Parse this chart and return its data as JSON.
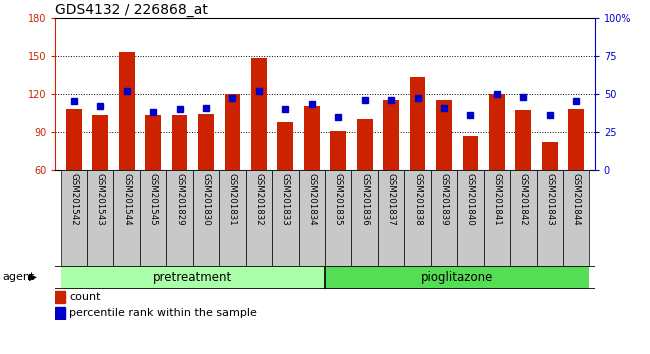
{
  "title": "GDS4132 / 226868_at",
  "categories": [
    "GSM201542",
    "GSM201543",
    "GSM201544",
    "GSM201545",
    "GSM201829",
    "GSM201830",
    "GSM201831",
    "GSM201832",
    "GSM201833",
    "GSM201834",
    "GSM201835",
    "GSM201836",
    "GSM201837",
    "GSM201838",
    "GSM201839",
    "GSM201840",
    "GSM201841",
    "GSM201842",
    "GSM201843",
    "GSM201844"
  ],
  "counts": [
    108,
    103,
    153,
    103,
    103,
    104,
    120,
    148,
    98,
    110,
    91,
    100,
    115,
    133,
    115,
    87,
    120,
    107,
    82,
    108
  ],
  "percentile_ranks": [
    45,
    42,
    52,
    38,
    40,
    41,
    47,
    52,
    40,
    43,
    35,
    46,
    46,
    47,
    41,
    36,
    50,
    48,
    36,
    45
  ],
  "bar_color": "#cc2200",
  "dot_color": "#0000cc",
  "ylim_left": [
    60,
    180
  ],
  "ylim_right": [
    0,
    100
  ],
  "yticks_left": [
    60,
    90,
    120,
    150,
    180
  ],
  "yticks_right": [
    0,
    25,
    50,
    75,
    100
  ],
  "ylabel_left_color": "#cc2200",
  "ylabel_right_color": "#0000cc",
  "pretreatment_count": 10,
  "pioglitazone_count": 10,
  "agent_label": "agent",
  "pretreatment_label": "pretreatment",
  "pioglitazone_label": "pioglitazone",
  "legend_count_label": "count",
  "legend_percentile_label": "percentile rank within the sample",
  "bg_color": "#c8c8c8",
  "pretreatment_color": "#aaffaa",
  "pioglitazone_color": "#55dd55",
  "tick_fontsize": 7,
  "label_fontsize": 8,
  "title_fontsize": 10
}
